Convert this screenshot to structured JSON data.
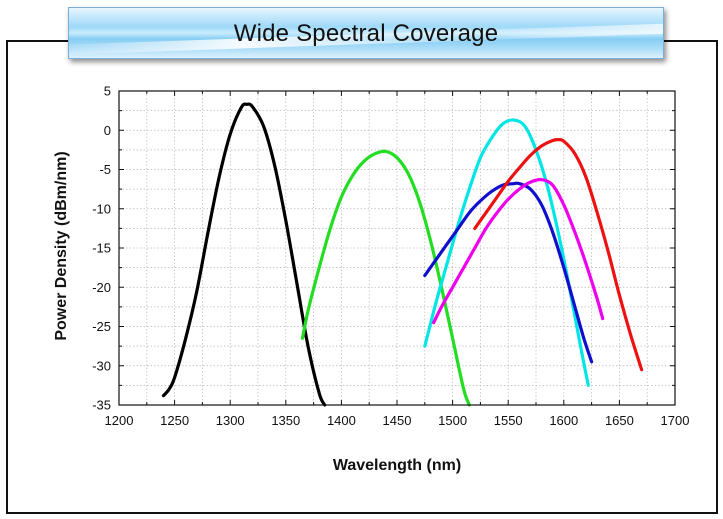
{
  "banner": {
    "title": "Wide Spectral Coverage"
  },
  "chart_data": {
    "type": "line",
    "title": "Wide Spectral Coverage",
    "xlabel": "Wavelength (nm)",
    "ylabel": "Power Density (dBm/nm)",
    "xlim": [
      1200,
      1700
    ],
    "ylim": [
      -35,
      5
    ],
    "xticks": [
      1200,
      1250,
      1300,
      1350,
      1400,
      1450,
      1500,
      1550,
      1600,
      1650,
      1700
    ],
    "yticks": [
      5,
      0,
      -5,
      -10,
      -15,
      -20,
      -25,
      -30,
      -35
    ],
    "grid": true,
    "series": [
      {
        "color": "#000000",
        "peak_x": 1315,
        "peak_y": 3.3,
        "x": [
          1240,
          1245,
          1250,
          1260,
          1270,
          1280,
          1290,
          1300,
          1310,
          1315,
          1320,
          1330,
          1340,
          1350,
          1360,
          1370,
          1380,
          1385
        ],
        "y": [
          -33.8,
          -33.0,
          -31.5,
          -26.5,
          -20.5,
          -13.0,
          -6.0,
          -0.5,
          2.9,
          3.3,
          3.0,
          0.5,
          -4.5,
          -11.5,
          -19.5,
          -27.5,
          -33.5,
          -35.0
        ]
      },
      {
        "color": "#22dd22",
        "peak_x": 1440,
        "peak_y": -2.7,
        "x": [
          1365,
          1370,
          1380,
          1390,
          1400,
          1410,
          1420,
          1430,
          1440,
          1450,
          1460,
          1470,
          1480,
          1490,
          1500,
          1510,
          1515
        ],
        "y": [
          -26.5,
          -23.0,
          -17.5,
          -12.5,
          -8.5,
          -5.8,
          -4.0,
          -3.0,
          -2.7,
          -3.5,
          -5.5,
          -9.0,
          -14.0,
          -20.0,
          -26.5,
          -33.0,
          -35.0
        ]
      },
      {
        "color": "#00e5e5",
        "peak_x": 1555,
        "peak_y": 1.3,
        "x": [
          1475,
          1485,
          1495,
          1505,
          1515,
          1525,
          1535,
          1545,
          1555,
          1565,
          1575,
          1585,
          1595,
          1605,
          1615,
          1622
        ],
        "y": [
          -27.5,
          -22.0,
          -17.0,
          -12.0,
          -7.5,
          -3.5,
          -1.0,
          0.8,
          1.3,
          0.5,
          -2.5,
          -7.0,
          -13.0,
          -20.0,
          -27.5,
          -32.5
        ]
      },
      {
        "color": "#1010cc",
        "peak_x": 1560,
        "peak_y": -6.8,
        "x": [
          1475,
          1485,
          1495,
          1505,
          1515,
          1525,
          1535,
          1545,
          1555,
          1560,
          1570,
          1580,
          1590,
          1600,
          1610,
          1618,
          1625
        ],
        "y": [
          -18.5,
          -16.5,
          -14.5,
          -12.5,
          -10.5,
          -9.0,
          -7.8,
          -7.0,
          -6.8,
          -6.8,
          -7.5,
          -9.5,
          -13.0,
          -17.5,
          -22.5,
          -26.5,
          -29.5
        ]
      },
      {
        "color": "#ee00ee",
        "peak_x": 1580,
        "peak_y": -6.3,
        "x": [
          1483,
          1490,
          1500,
          1510,
          1520,
          1530,
          1540,
          1550,
          1560,
          1570,
          1580,
          1590,
          1600,
          1610,
          1620,
          1630,
          1635
        ],
        "y": [
          -24.5,
          -22.5,
          -20.0,
          -17.5,
          -15.0,
          -12.5,
          -10.5,
          -8.8,
          -7.5,
          -6.6,
          -6.3,
          -7.0,
          -9.5,
          -13.0,
          -17.0,
          -21.5,
          -24.0
        ]
      },
      {
        "color": "#ee1111",
        "peak_x": 1595,
        "peak_y": -1.2,
        "x": [
          1520,
          1530,
          1540,
          1550,
          1560,
          1570,
          1580,
          1590,
          1595,
          1600,
          1610,
          1620,
          1630,
          1640,
          1650,
          1660,
          1670
        ],
        "y": [
          -12.5,
          -10.5,
          -8.5,
          -6.5,
          -4.8,
          -3.2,
          -2.0,
          -1.3,
          -1.2,
          -1.4,
          -3.0,
          -6.0,
          -10.5,
          -15.5,
          -21.0,
          -26.0,
          -30.5
        ]
      }
    ]
  }
}
